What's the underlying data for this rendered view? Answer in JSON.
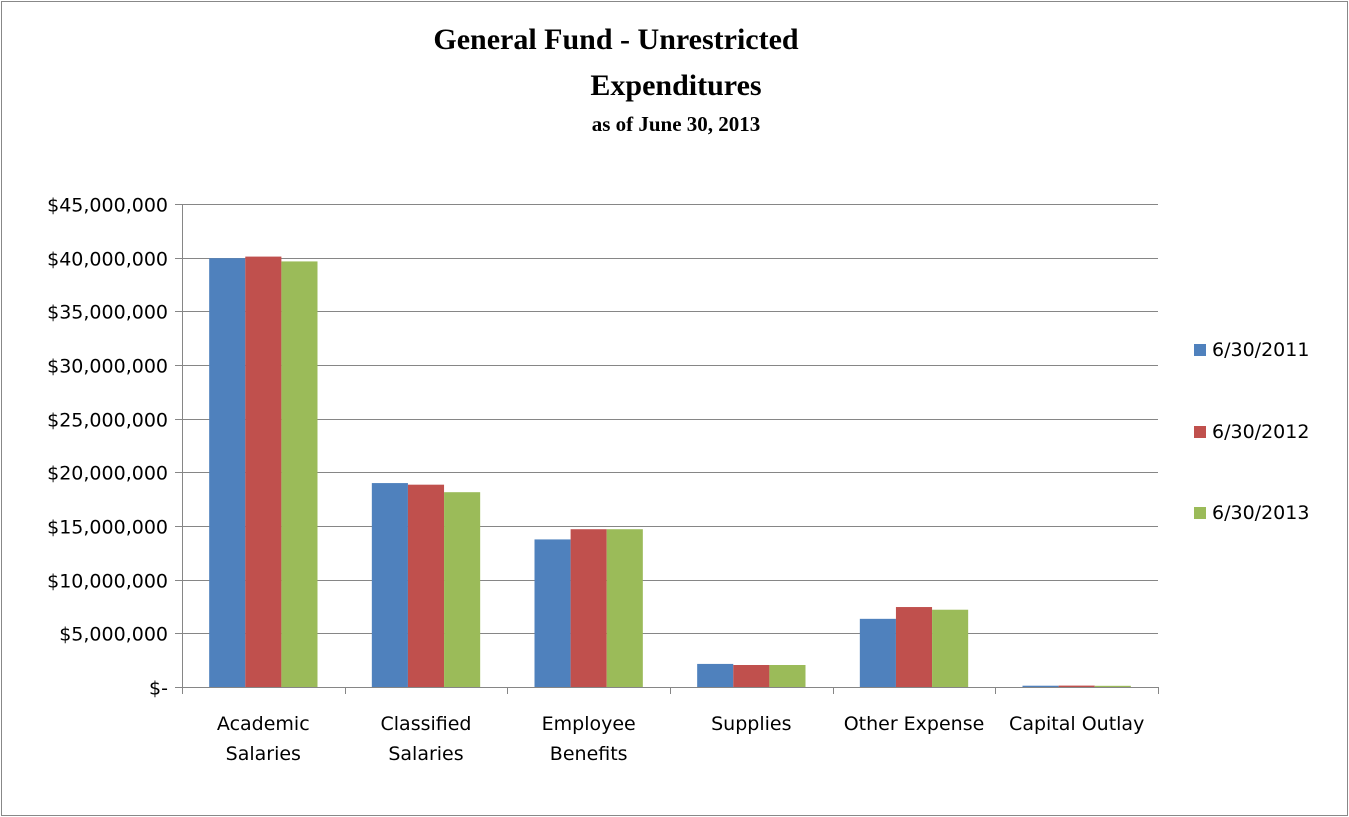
{
  "chart_data": {
    "type": "bar",
    "title_lines": [
      "General Fund - Unrestricted",
      "Expenditures"
    ],
    "subtitle": "as of June 30, 2013",
    "xlabel": "",
    "ylabel": "",
    "ylim": [
      0,
      45000000
    ],
    "yticks": [
      {
        "value": 0,
        "label": "$-"
      },
      {
        "value": 5000000,
        "label": "$5,000,000"
      },
      {
        "value": 10000000,
        "label": "$10,000,000"
      },
      {
        "value": 15000000,
        "label": "$15,000,000"
      },
      {
        "value": 20000000,
        "label": "$20,000,000"
      },
      {
        "value": 25000000,
        "label": "$25,000,000"
      },
      {
        "value": 30000000,
        "label": "$30,000,000"
      },
      {
        "value": 35000000,
        "label": "$35,000,000"
      },
      {
        "value": 40000000,
        "label": "$40,000,000"
      },
      {
        "value": 45000000,
        "label": "$45,000,000"
      }
    ],
    "categories": [
      [
        "Academic",
        "Salaries"
      ],
      [
        "Classified",
        "Salaries"
      ],
      [
        "Employee",
        "Benefits"
      ],
      [
        "Supplies"
      ],
      [
        "Other Expense"
      ],
      [
        "Capital Outlay"
      ]
    ],
    "series": [
      {
        "name": "6/30/2011",
        "color": "#4f81bd",
        "values": [
          39950000,
          19000000,
          13750000,
          2150000,
          6350000,
          120000
        ]
      },
      {
        "name": "6/30/2012",
        "color": "#c0504d",
        "values": [
          40100000,
          18850000,
          14700000,
          2050000,
          7450000,
          130000
        ]
      },
      {
        "name": "6/30/2013",
        "color": "#9bbb59",
        "values": [
          39650000,
          18150000,
          14700000,
          2050000,
          7200000,
          110000
        ]
      }
    ],
    "grid": true,
    "legend_position": "right"
  }
}
